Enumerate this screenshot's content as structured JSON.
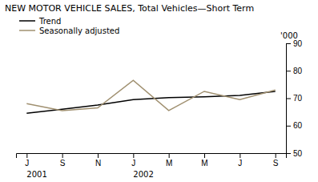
{
  "chart_data": {
    "type": "line",
    "title": "NEW MOTOR VEHICLE SALES, Total Vehicles—Short Term",
    "ylabel": "'000",
    "categories": [
      "J",
      "S",
      "N",
      "J",
      "M",
      "M",
      "J",
      "S"
    ],
    "series": [
      {
        "name": "Trend",
        "color": "#000000",
        "values": [
          64.5,
          66.0,
          67.5,
          69.5,
          70.2,
          70.5,
          71.0,
          72.5
        ]
      },
      {
        "name": "Seasonally adjusted",
        "color": "#a09070",
        "values": [
          68.0,
          65.5,
          66.5,
          76.5,
          65.5,
          72.5,
          69.5,
          73.0
        ]
      }
    ],
    "annotations": [
      {
        "x": 0,
        "text": "2001"
      },
      {
        "x": 3,
        "text": "2002"
      }
    ],
    "ylim": [
      50,
      90
    ],
    "yticks": [
      50,
      60,
      70,
      80,
      90
    ],
    "grid": false,
    "legend": "upper left"
  }
}
